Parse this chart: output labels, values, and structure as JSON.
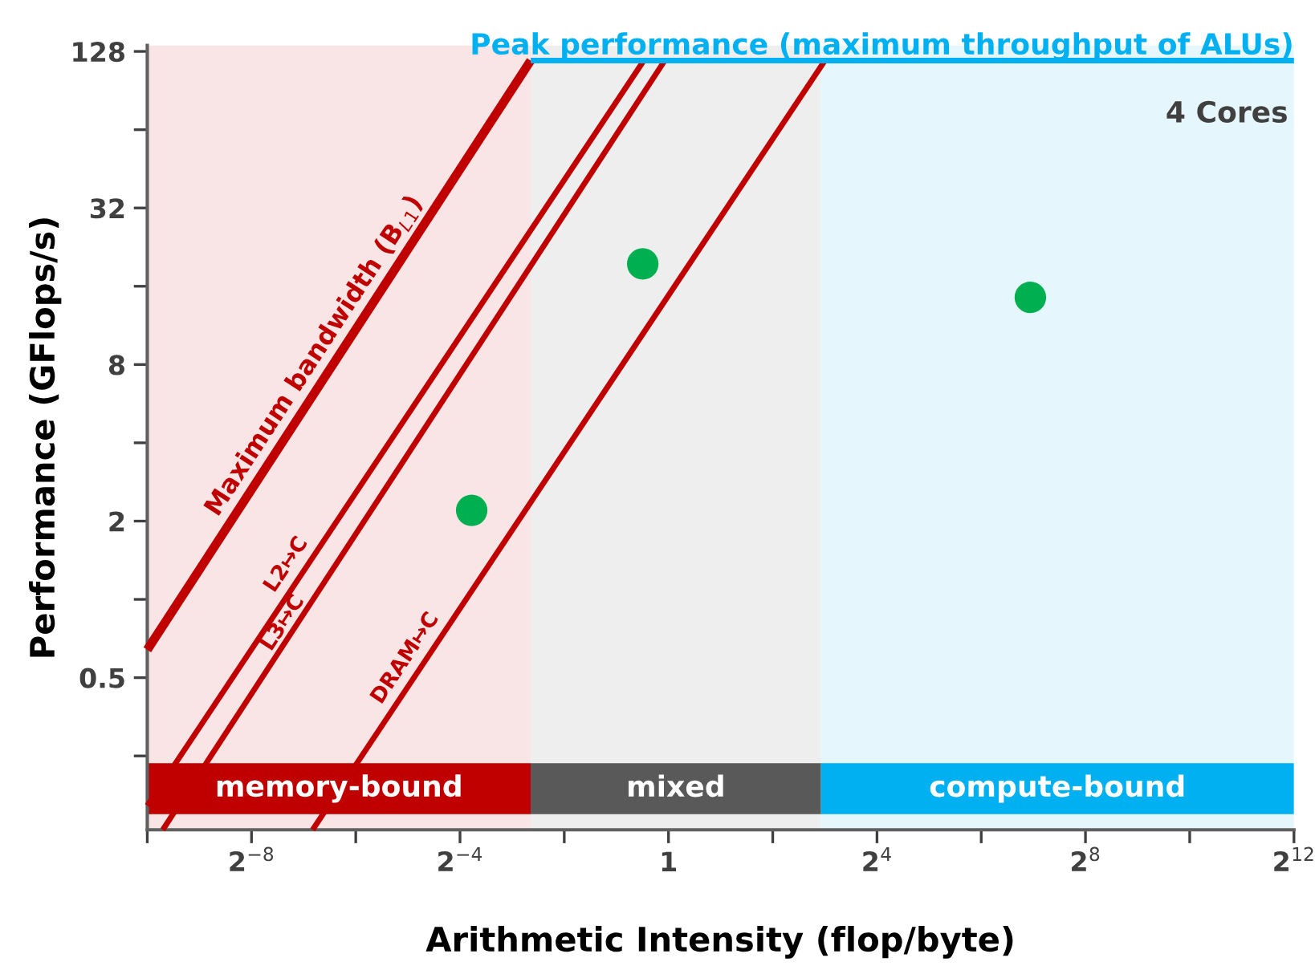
{
  "chart_data": {
    "type": "line",
    "xlabel": "Arithmetic Intensity (flop/byte)",
    "ylabel": "Performance (GFlops/s)",
    "log": "xy",
    "grid": false,
    "legend": false,
    "xlim": [
      0.0009765625,
      4096
    ],
    "ylim": [
      0.13,
      135
    ],
    "xticks": [
      {
        "value": 0.0009765625,
        "label": null
      },
      {
        "value": 0.00390625,
        "label": "2$^{−8}$"
      },
      {
        "value": 0.015625,
        "label": null
      },
      {
        "value": 0.0625,
        "label": "2$^{−4}$"
      },
      {
        "value": 0.25,
        "label": null
      },
      1,
      {
        "value": 4,
        "label": null
      },
      {
        "value": 16,
        "label": "2$^{4}$"
      },
      {
        "value": 64,
        "label": null
      },
      {
        "value": 256,
        "label": "2$^{8}$"
      },
      {
        "value": 1024,
        "label": null
      },
      {
        "value": 4096,
        "label": "2$^{12}$"
      }
    ],
    "yticks": [
      {
        "value": 0.25,
        "label": null
      },
      0.5,
      {
        "value": 1,
        "label": null
      },
      2,
      {
        "value": 4,
        "label": null
      },
      8,
      {
        "value": 16,
        "label": null
      },
      32,
      {
        "value": 64,
        "label": null
      },
      128
    ],
    "series": [
      {
        "name": "Maximum bandwidth (B$_{L1}$)",
        "color": "#c00000",
        "x": [
          0.0009765625,
          0.16
        ],
        "values": [
          0.64,
          118
        ]
      },
      {
        "name": "L2↦C",
        "color": "#c00000",
        "x": [
          0.0009765625,
          0.72
        ],
        "values": [
          0.161,
          118
        ]
      },
      {
        "name": "L3↦C",
        "color": "#c00000",
        "x": [
          0.0012,
          0.95
        ],
        "values": [
          0.13,
          118
        ]
      },
      {
        "name": "DRAM↦C",
        "color": "#c00000",
        "x": [
          0.0088,
          8
        ],
        "values": [
          0.13,
          118
        ]
      },
      {
        "name": "Peak performance (maximum throughput of ALUs)",
        "color": "#00b0f0",
        "x": [
          0.16,
          4096
        ],
        "values": [
          118,
          118
        ]
      },
      {
        "type": "scatter",
        "color": "#00b050",
        "marker": "circle",
        "x": [
          0.073,
          0.71,
          123
        ],
        "values": [
          2.2,
          19.5,
          14.5
        ]
      }
    ],
    "bands": [
      {
        "axis": "x",
        "from": 0.0009765625,
        "to": 0.16,
        "label": "memory-bound",
        "color": "#c00000"
      },
      {
        "axis": "x",
        "from": 0.16,
        "to": 7.6,
        "label": "mixed",
        "color": "#595959"
      },
      {
        "axis": "x",
        "from": 7.6,
        "to": 4096,
        "label": "compute-bound",
        "color": "#00b0f0"
      }
    ],
    "annotations": [
      "4 Cores"
    ]
  }
}
